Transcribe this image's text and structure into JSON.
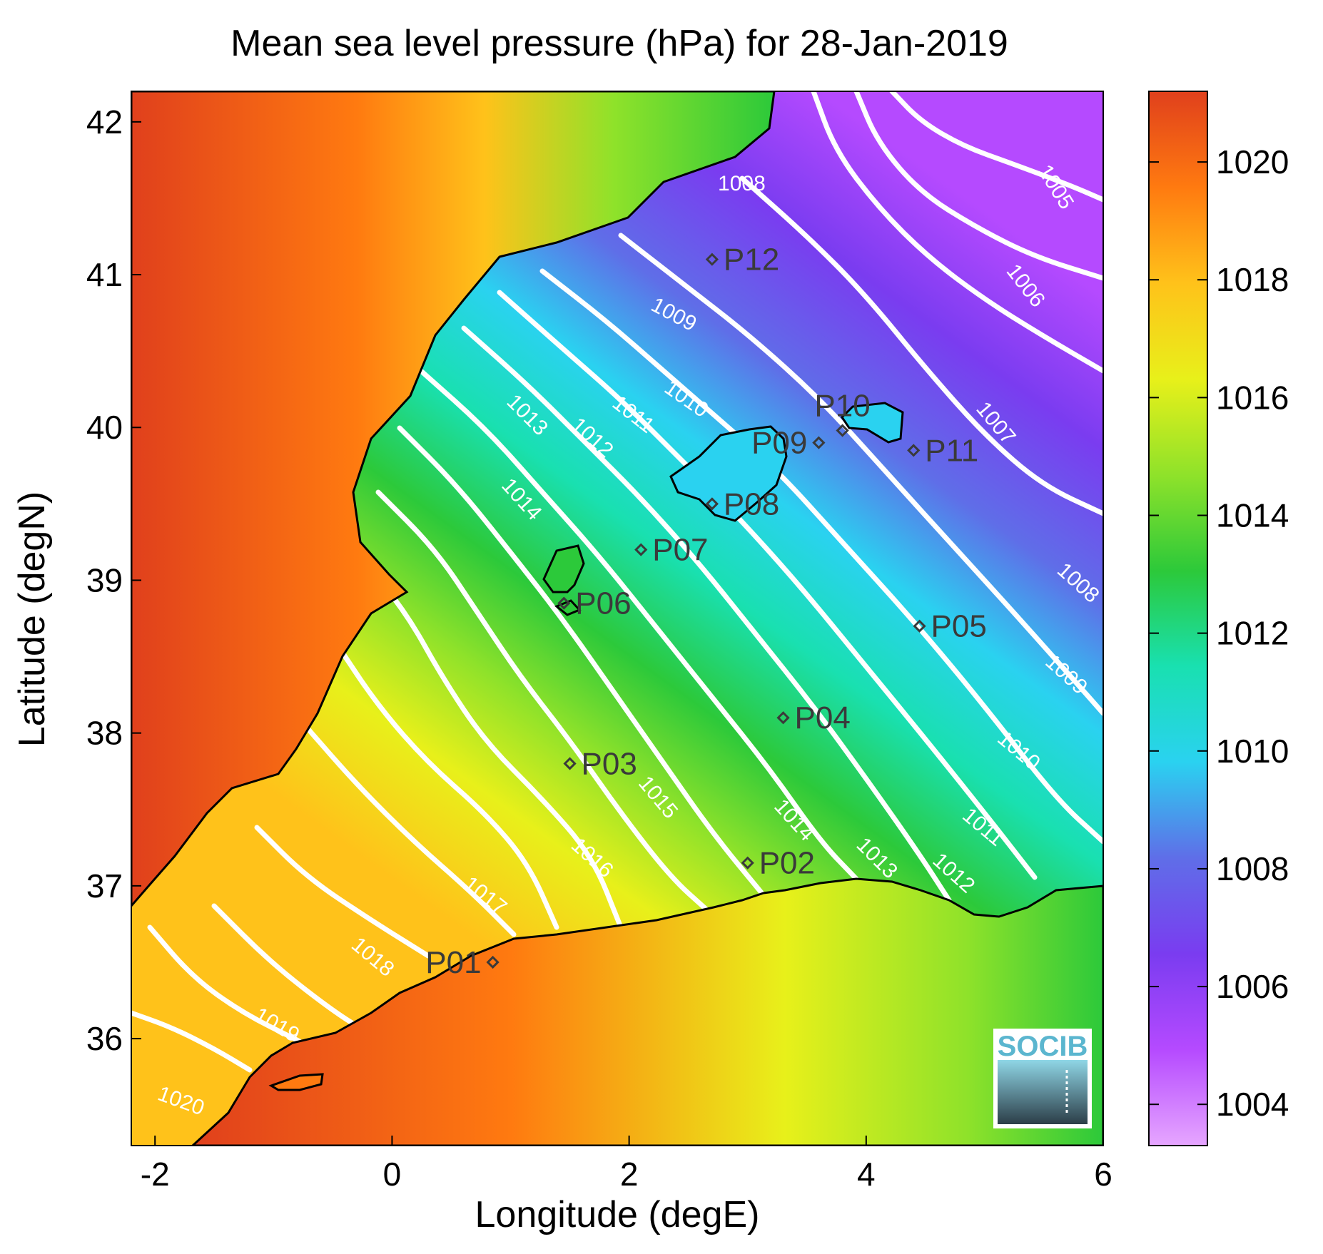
{
  "title": "Mean sea level pressure (hPa) for 28-Jan-2019",
  "xlabel": "Longitude (degE)",
  "ylabel": "Latitude (degN)",
  "x_ticks": [
    "-2",
    "0",
    "2",
    "4",
    "6"
  ],
  "y_ticks": [
    "42",
    "41",
    "40",
    "39",
    "38",
    "37",
    "36"
  ],
  "colorbar_ticks": [
    "1020",
    "1018",
    "1016",
    "1014",
    "1012",
    "1010",
    "1008",
    "1006",
    "1004"
  ],
  "colorbar_range": [
    1003.3,
    1021.2
  ],
  "lon_range": [
    -2.2,
    6.0
  ],
  "lat_range": [
    35.3,
    42.2
  ],
  "colormap": [
    "#e6a6ff",
    "#b54aff",
    "#7a3cf0",
    "#5f6ee8",
    "#2ad2f0",
    "#19e0b0",
    "#2cc93a",
    "#8fe22a",
    "#e8f01a",
    "#ffc21a",
    "#ff7a10",
    "#e0401c"
  ],
  "logo_text": "SOCIB",
  "contour_labels": [
    {
      "text": "1005",
      "lon": 5.55,
      "lat": 41.55,
      "rot": 58
    },
    {
      "text": "1006",
      "lon": 5.3,
      "lat": 40.9,
      "rot": 52
    },
    {
      "text": "1007",
      "lon": 5.05,
      "lat": 40.0,
      "rot": 50
    },
    {
      "text": "1008",
      "lon": 2.95,
      "lat": 41.55,
      "rot": 0
    },
    {
      "text": "1008",
      "lon": 5.75,
      "lat": 38.95,
      "rot": 42
    },
    {
      "text": "1009",
      "lon": 2.35,
      "lat": 40.7,
      "rot": 28
    },
    {
      "text": "1009",
      "lon": 5.65,
      "lat": 38.35,
      "rot": 42
    },
    {
      "text": "1010",
      "lon": 2.45,
      "lat": 40.15,
      "rot": 35
    },
    {
      "text": "1010",
      "lon": 5.25,
      "lat": 37.85,
      "rot": 40
    },
    {
      "text": "1011",
      "lon": 2.0,
      "lat": 40.05,
      "rot": 38
    },
    {
      "text": "1011",
      "lon": 4.95,
      "lat": 37.35,
      "rot": 40
    },
    {
      "text": "1012",
      "lon": 1.65,
      "lat": 39.9,
      "rot": 42
    },
    {
      "text": "1012",
      "lon": 4.7,
      "lat": 37.05,
      "rot": 42
    },
    {
      "text": "1013",
      "lon": 1.1,
      "lat": 40.05,
      "rot": 45
    },
    {
      "text": "1013",
      "lon": 4.05,
      "lat": 37.15,
      "rot": 45
    },
    {
      "text": "1014",
      "lon": 1.05,
      "lat": 39.5,
      "rot": 48
    },
    {
      "text": "1014",
      "lon": 3.35,
      "lat": 37.4,
      "rot": 48
    },
    {
      "text": "1015",
      "lon": 2.2,
      "lat": 37.55,
      "rot": 50
    },
    {
      "text": "1016",
      "lon": 1.65,
      "lat": 37.15,
      "rot": 42
    },
    {
      "text": "1017",
      "lon": 0.75,
      "lat": 36.9,
      "rot": 38
    },
    {
      "text": "1018",
      "lon": -0.2,
      "lat": 36.5,
      "rot": 40
    },
    {
      "text": "1019",
      "lon": -1.0,
      "lat": 36.05,
      "rot": 30
    },
    {
      "text": "1020",
      "lon": -1.8,
      "lat": 35.55,
      "rot": 20
    }
  ],
  "stations": [
    {
      "name": "P01",
      "lon": 0.85,
      "lat": 36.5,
      "label_side": "left"
    },
    {
      "name": "P02",
      "lon": 3.0,
      "lat": 37.15,
      "label_side": "right"
    },
    {
      "name": "P03",
      "lon": 1.5,
      "lat": 37.8,
      "label_side": "right"
    },
    {
      "name": "P04",
      "lon": 3.3,
      "lat": 38.1,
      "label_side": "right"
    },
    {
      "name": "P05",
      "lon": 4.45,
      "lat": 38.7,
      "label_side": "right"
    },
    {
      "name": "P06",
      "lon": 1.45,
      "lat": 38.85,
      "label_side": "right"
    },
    {
      "name": "P07",
      "lon": 2.1,
      "lat": 39.2,
      "label_side": "right"
    },
    {
      "name": "P08",
      "lon": 2.7,
      "lat": 39.5,
      "label_side": "right"
    },
    {
      "name": "P09",
      "lon": 3.6,
      "lat": 39.9,
      "label_side": "left"
    },
    {
      "name": "P10",
      "lon": 3.8,
      "lat": 39.98,
      "label_side": "above"
    },
    {
      "name": "P11",
      "lon": 4.4,
      "lat": 39.85,
      "label_side": "right"
    },
    {
      "name": "P12",
      "lon": 2.7,
      "lat": 41.1,
      "label_side": "right"
    }
  ]
}
